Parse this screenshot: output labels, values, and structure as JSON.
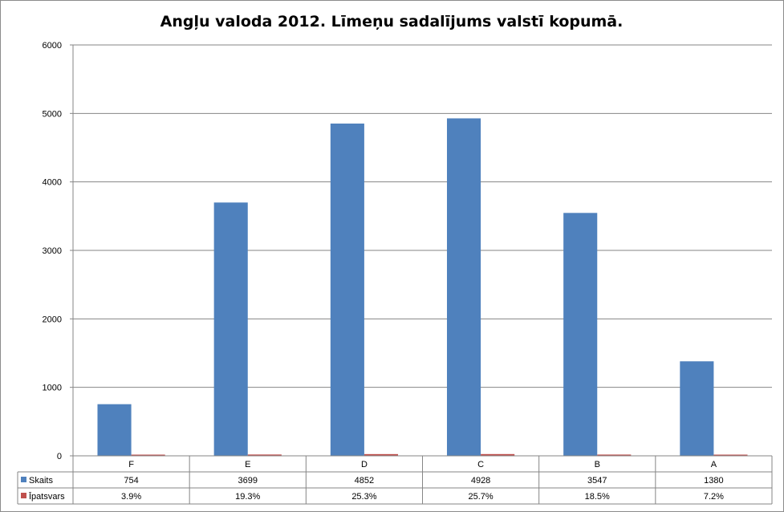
{
  "chart_data": {
    "type": "bar",
    "title": "Angļu valoda 2012. Līmeņu sadalījums valstī kopumā.",
    "categories": [
      "F",
      "E",
      "D",
      "C",
      "B",
      "A"
    ],
    "series": [
      {
        "name": "Skaits",
        "values": [
          754,
          3699,
          4852,
          4928,
          3547,
          1380
        ],
        "labels": [
          "754",
          "3699",
          "4852",
          "4928",
          "3547",
          "1380"
        ],
        "color": "#4F81BD"
      },
      {
        "name": "Īpatsvars",
        "values": [
          3.9,
          19.3,
          25.3,
          25.7,
          18.5,
          7.2
        ],
        "labels": [
          "3.9%",
          "19.3%",
          "25.3%",
          "25.7%",
          "18.5%",
          "7.2%"
        ],
        "color": "#C0504D"
      }
    ],
    "ylim": [
      0,
      6000
    ],
    "yticks": [
      "0",
      "1000",
      "2000",
      "3000",
      "4000",
      "5000",
      "6000"
    ],
    "grid": true,
    "legend": "data-table"
  }
}
